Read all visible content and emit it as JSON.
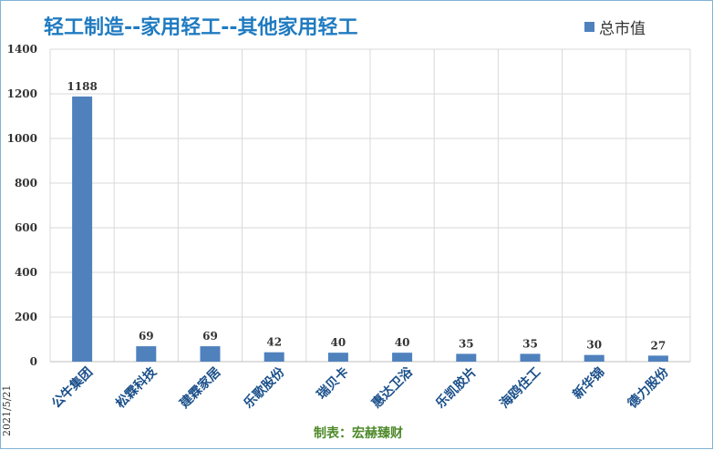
{
  "chart_data": {
    "type": "bar",
    "title": "轻工制造--家用轻工--其他家用轻工",
    "categories": [
      "公牛集团",
      "松霖科技",
      "建霖家居",
      "乐歌股份",
      "瑞贝卡",
      "惠达卫浴",
      "乐凯胶片",
      "海鸥住工",
      "新华锦",
      "德力股份"
    ],
    "series": [
      {
        "name": "总市值",
        "values": [
          1188,
          69,
          69,
          42,
          40,
          40,
          35,
          35,
          30,
          27
        ]
      }
    ],
    "ylim": [
      0,
      1400
    ],
    "yticks": [
      0,
      200,
      400,
      600,
      800,
      1000,
      1200,
      1400
    ],
    "xlabel": "",
    "ylabel": "",
    "grid": true,
    "legend_position": "top-right",
    "bar_color": "#4f81bd"
  },
  "footer": {
    "date": "2021/5/21",
    "credit": "制表：宏赫臻财"
  }
}
